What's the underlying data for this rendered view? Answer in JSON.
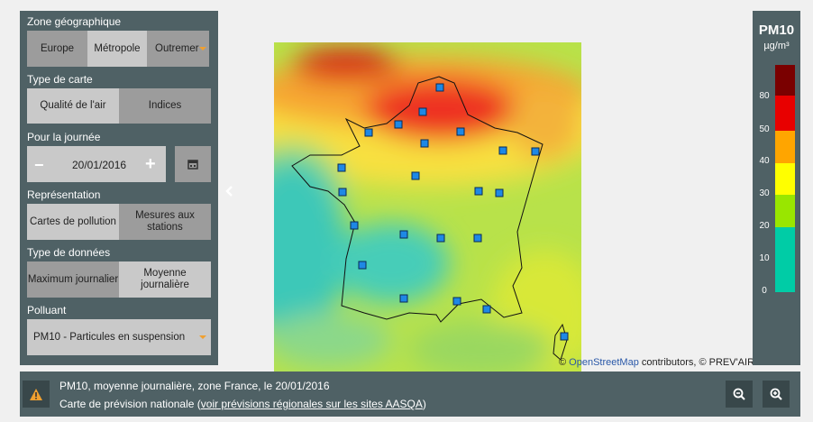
{
  "sidebar": {
    "sections": [
      {
        "label": "Zone géographique",
        "options": [
          "Europe",
          "Métropole",
          "Outremer"
        ]
      },
      {
        "label": "Type de carte",
        "options": [
          "Qualité de l'air",
          "Indices"
        ]
      },
      {
        "label": "Pour la journée",
        "date": "20/01/2016"
      },
      {
        "label": "Représentation",
        "options": [
          "Cartes de pollution",
          "Mesures aux stations"
        ]
      },
      {
        "label": "Type de données",
        "options": [
          "Maximum journalier",
          "Moyenne journalière"
        ]
      },
      {
        "label": "Polluant",
        "select": "PM10 - Particules en suspension"
      }
    ]
  },
  "legend": {
    "title": "PM10",
    "unit": "µg/m³",
    "labels": [
      "80",
      "50",
      "40",
      "30",
      "20",
      "10",
      "0"
    ]
  },
  "attribution": {
    "prefix": "© ",
    "link": "OpenStreetMap",
    "suffix": " contributors, © PREV'AIR"
  },
  "footer": {
    "line1": "PM10, moyenne journalière, zone France, le 20/01/2016",
    "line2_prefix": "Carte de prévision nationale (",
    "link": "voir prévisions régionales sur les sites AASQA",
    "line2_suffix": ")"
  }
}
